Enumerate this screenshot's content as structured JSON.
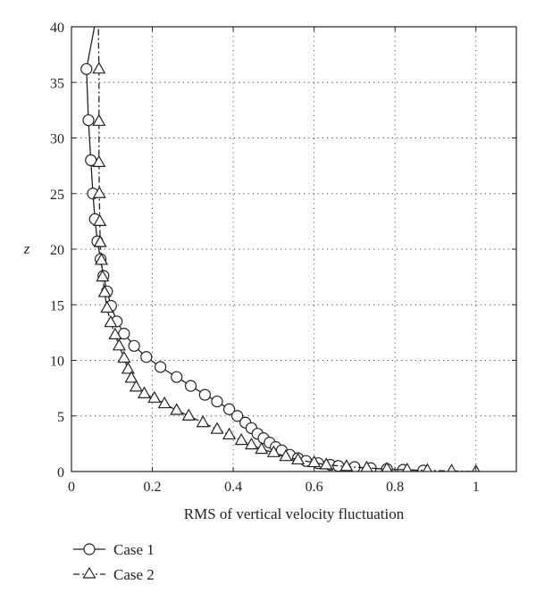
{
  "chart_data": {
    "type": "line",
    "title": "",
    "xlabel": "RMS of vertical velocity fluctuation",
    "ylabel": "z",
    "xlim": [
      0,
      1.1
    ],
    "ylim": [
      0,
      40
    ],
    "x_ticks": [
      0,
      0.2,
      0.4,
      0.6,
      0.8,
      1
    ],
    "y_ticks": [
      0,
      5,
      10,
      15,
      20,
      25,
      30,
      35,
      40
    ],
    "x_tick_labels": [
      "0",
      "0.2",
      "0.4",
      "0.6",
      "0.8",
      "1"
    ],
    "y_tick_labels": [
      "0",
      "5",
      "10",
      "15",
      "20",
      "25",
      "30",
      "35",
      "40"
    ],
    "grid": "dotted",
    "legend_position": "below",
    "series": [
      {
        "name": "Case 1",
        "line_style": "solid",
        "marker": "circle",
        "color": "#222222",
        "points": [
          {
            "x": 0.037,
            "y": 36.2
          },
          {
            "x": 0.042,
            "y": 31.6
          },
          {
            "x": 0.048,
            "y": 28.0
          },
          {
            "x": 0.053,
            "y": 25.0
          },
          {
            "x": 0.058,
            "y": 22.7
          },
          {
            "x": 0.064,
            "y": 20.7
          },
          {
            "x": 0.072,
            "y": 19.1
          },
          {
            "x": 0.079,
            "y": 17.6
          },
          {
            "x": 0.088,
            "y": 16.2
          },
          {
            "x": 0.098,
            "y": 14.9
          },
          {
            "x": 0.112,
            "y": 13.5
          },
          {
            "x": 0.13,
            "y": 12.4
          },
          {
            "x": 0.155,
            "y": 11.3
          },
          {
            "x": 0.185,
            "y": 10.3
          },
          {
            "x": 0.22,
            "y": 9.4
          },
          {
            "x": 0.26,
            "y": 8.5
          },
          {
            "x": 0.295,
            "y": 7.7
          },
          {
            "x": 0.33,
            "y": 6.9
          },
          {
            "x": 0.36,
            "y": 6.3
          },
          {
            "x": 0.39,
            "y": 5.6
          },
          {
            "x": 0.41,
            "y": 5.0
          },
          {
            "x": 0.43,
            "y": 4.4
          },
          {
            "x": 0.445,
            "y": 3.9
          },
          {
            "x": 0.46,
            "y": 3.4
          },
          {
            "x": 0.475,
            "y": 3.0
          },
          {
            "x": 0.49,
            "y": 2.6
          },
          {
            "x": 0.505,
            "y": 2.2
          },
          {
            "x": 0.52,
            "y": 1.9
          },
          {
            "x": 0.54,
            "y": 1.5
          },
          {
            "x": 0.56,
            "y": 1.2
          },
          {
            "x": 0.58,
            "y": 0.95
          },
          {
            "x": 0.61,
            "y": 0.75
          },
          {
            "x": 0.64,
            "y": 0.6
          },
          {
            "x": 0.66,
            "y": 0.5
          },
          {
            "x": 0.7,
            "y": 0.4
          },
          {
            "x": 0.74,
            "y": 0.3
          },
          {
            "x": 0.78,
            "y": 0.22
          },
          {
            "x": 0.82,
            "y": 0.15
          },
          {
            "x": 0.87,
            "y": 0.08
          }
        ]
      },
      {
        "name": "Case 2",
        "line_style": "dashdot",
        "marker": "triangle",
        "color": "#222222",
        "points": [
          {
            "x": 0.068,
            "y": 36.2
          },
          {
            "x": 0.068,
            "y": 31.5
          },
          {
            "x": 0.068,
            "y": 27.8
          },
          {
            "x": 0.069,
            "y": 25.0
          },
          {
            "x": 0.07,
            "y": 22.5
          },
          {
            "x": 0.071,
            "y": 20.6
          },
          {
            "x": 0.074,
            "y": 19.0
          },
          {
            "x": 0.077,
            "y": 17.5
          },
          {
            "x": 0.082,
            "y": 16.1
          },
          {
            "x": 0.088,
            "y": 14.7
          },
          {
            "x": 0.097,
            "y": 13.4
          },
          {
            "x": 0.108,
            "y": 12.3
          },
          {
            "x": 0.118,
            "y": 11.3
          },
          {
            "x": 0.13,
            "y": 10.2
          },
          {
            "x": 0.14,
            "y": 9.2
          },
          {
            "x": 0.148,
            "y": 8.4
          },
          {
            "x": 0.16,
            "y": 7.6
          },
          {
            "x": 0.18,
            "y": 7.0
          },
          {
            "x": 0.205,
            "y": 6.6
          },
          {
            "x": 0.23,
            "y": 6.1
          },
          {
            "x": 0.26,
            "y": 5.5
          },
          {
            "x": 0.29,
            "y": 5.0
          },
          {
            "x": 0.325,
            "y": 4.4
          },
          {
            "x": 0.36,
            "y": 3.8
          },
          {
            "x": 0.39,
            "y": 3.3
          },
          {
            "x": 0.42,
            "y": 2.8
          },
          {
            "x": 0.445,
            "y": 2.4
          },
          {
            "x": 0.47,
            "y": 2.0
          },
          {
            "x": 0.5,
            "y": 1.7
          },
          {
            "x": 0.53,
            "y": 1.35
          },
          {
            "x": 0.56,
            "y": 1.05
          },
          {
            "x": 0.6,
            "y": 0.8
          },
          {
            "x": 0.63,
            "y": 0.6
          },
          {
            "x": 0.68,
            "y": 0.45
          },
          {
            "x": 0.73,
            "y": 0.32
          },
          {
            "x": 0.78,
            "y": 0.22
          },
          {
            "x": 0.83,
            "y": 0.15
          },
          {
            "x": 0.88,
            "y": 0.1
          },
          {
            "x": 0.94,
            "y": 0.05
          },
          {
            "x": 1.0,
            "y": 0.0
          }
        ]
      }
    ]
  }
}
